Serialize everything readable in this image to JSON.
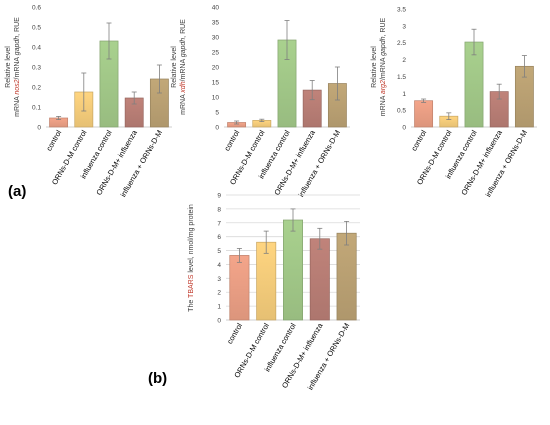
{
  "panel_labels": {
    "a": "(a)",
    "b": "(b)"
  },
  "ylabel_parts": {
    "c1": [
      "Relative level",
      "mRNA ",
      "nos2",
      "/mRNA ",
      "gapdh",
      ", RUE"
    ],
    "c2": [
      "Relative level",
      "mRNA ",
      "xdh",
      "/mRNA ",
      "gapdh",
      ", RUE"
    ],
    "c3": [
      "Relative level",
      "mRNA ",
      "arg2",
      "/mRNA ",
      "gapdh",
      ", RUE"
    ],
    "c4": [
      "The ",
      "TBARS",
      " level, nmol/mg protein"
    ]
  },
  "colors": {
    "control": "#F4A58A",
    "orns_control": "#FFD580",
    "influenza_control": "#A9D18E",
    "orns_influenza": "#C0837A",
    "influenza_orns": "#C2A878",
    "accent_text": "#C0392B"
  },
  "chart_data": [
    {
      "type": "bar",
      "title": "",
      "xlabel": "",
      "ylabel": "Relative level mRNA nos2/mRNA gapdh, RUE",
      "categories": [
        "control",
        "ORNs-D-M control",
        "influenza control",
        "ORNs-D-M+ influenza",
        "influenza + ORNs-D-M"
      ],
      "values": [
        0.045,
        0.175,
        0.43,
        0.145,
        0.24
      ],
      "errors": [
        0.008,
        0.095,
        0.09,
        0.03,
        0.07
      ],
      "ylim": [
        0,
        0.6
      ],
      "yticks": [
        "0",
        "0.1",
        "0.2",
        "0.3",
        "0.4",
        "0.5",
        "0.6"
      ],
      "grid": false,
      "legend": "none"
    },
    {
      "type": "bar",
      "title": "",
      "xlabel": "",
      "ylabel": "Relative level mRNA xdh/mRNA gapdh, RUE",
      "categories": [
        "control",
        "ORNs-D-M control",
        "influenza control",
        "ORNs-D-M+ influenza",
        "influenza + ORNs-D-M"
      ],
      "values": [
        1.5,
        2.2,
        29.0,
        12.3,
        14.5
      ],
      "errors": [
        0.5,
        0.4,
        6.5,
        3.2,
        5.5
      ],
      "ylim": [
        0,
        40
      ],
      "yticks": [
        "0",
        "5",
        "10",
        "15",
        "20",
        "25",
        "30",
        "35",
        "40"
      ],
      "grid": false,
      "legend": "none"
    },
    {
      "type": "bar",
      "title": "",
      "xlabel": "",
      "ylabel": "Relative level mRNA arg2/mRNA gapdh, RUE",
      "categories": [
        "control",
        "ORNs-D-M control",
        "influenza control",
        "ORNs-D-M+ influenza",
        "influenza + ORNs-D-M"
      ],
      "values": [
        0.78,
        0.32,
        2.52,
        1.05,
        1.8
      ],
      "errors": [
        0.05,
        0.1,
        0.38,
        0.22,
        0.32
      ],
      "ylim": [
        0,
        3.5
      ],
      "yticks": [
        "0",
        "0.5",
        "1",
        "1.5",
        "2",
        "2.5",
        "3",
        "3.5"
      ],
      "grid": false,
      "legend": "none"
    },
    {
      "type": "bar",
      "title": "",
      "xlabel": "",
      "ylabel": "The TBARS level, nmol/mg protein",
      "categories": [
        "control",
        "ORNs-D-M control",
        "influenza control",
        "ORNs-D-M+ influenza",
        "influenza + ORNs-D-M"
      ],
      "values": [
        4.65,
        5.6,
        7.2,
        5.85,
        6.25
      ],
      "errors": [
        0.5,
        0.8,
        0.8,
        0.75,
        0.85
      ],
      "ylim": [
        0,
        9
      ],
      "yticks": [
        "0",
        "1",
        "2",
        "3",
        "4",
        "5",
        "6",
        "7",
        "8",
        "9"
      ],
      "grid": true,
      "legend": "none"
    }
  ]
}
